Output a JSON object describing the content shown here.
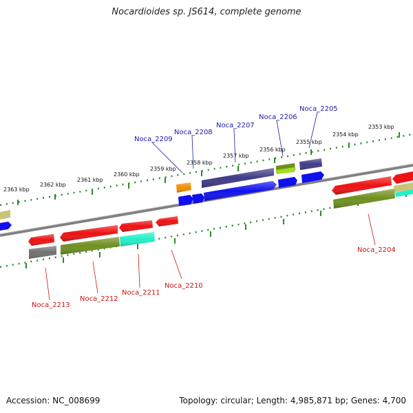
{
  "title": "Nocardioides sp. JS614, complete genome",
  "footer": {
    "accession": "Accession: NC_008699",
    "summary": "Topology: circular; Length: 4,985,871 bp; Genes: 4,700"
  },
  "colors": {
    "backbone": "#808080",
    "tick": "#2a8a2a",
    "label_top": "#1a1aaa",
    "label_bottom": "#cc1111",
    "red": "#ee1111",
    "blue": "#1010ee",
    "navy": "#403a88",
    "olive": "#6f8f1f",
    "khaki": "#c8c47a",
    "gray": "#707070",
    "cyan": "#22f0c8",
    "orange": "#f08c00",
    "lime": "#9fe020"
  },
  "kbp_labels": [
    "2353 kbp",
    "2354 kbp",
    "2355 kbp",
    "2356 kbp",
    "2357 kbp",
    "2358 kbp",
    "2359 kbp",
    "2360 kbp",
    "2361 kbp",
    "2362 kbp",
    "2363 kbp"
  ],
  "gene_labels_top": [
    "Noca_2205",
    "Noca_2206",
    "Noca_2207",
    "Noca_2208",
    "Noca_2209"
  ],
  "gene_labels_bottom": [
    "Noca_2204",
    "Noca_2210",
    "Noca_2211",
    "Noca_2212",
    "Noca_2213"
  ]
}
